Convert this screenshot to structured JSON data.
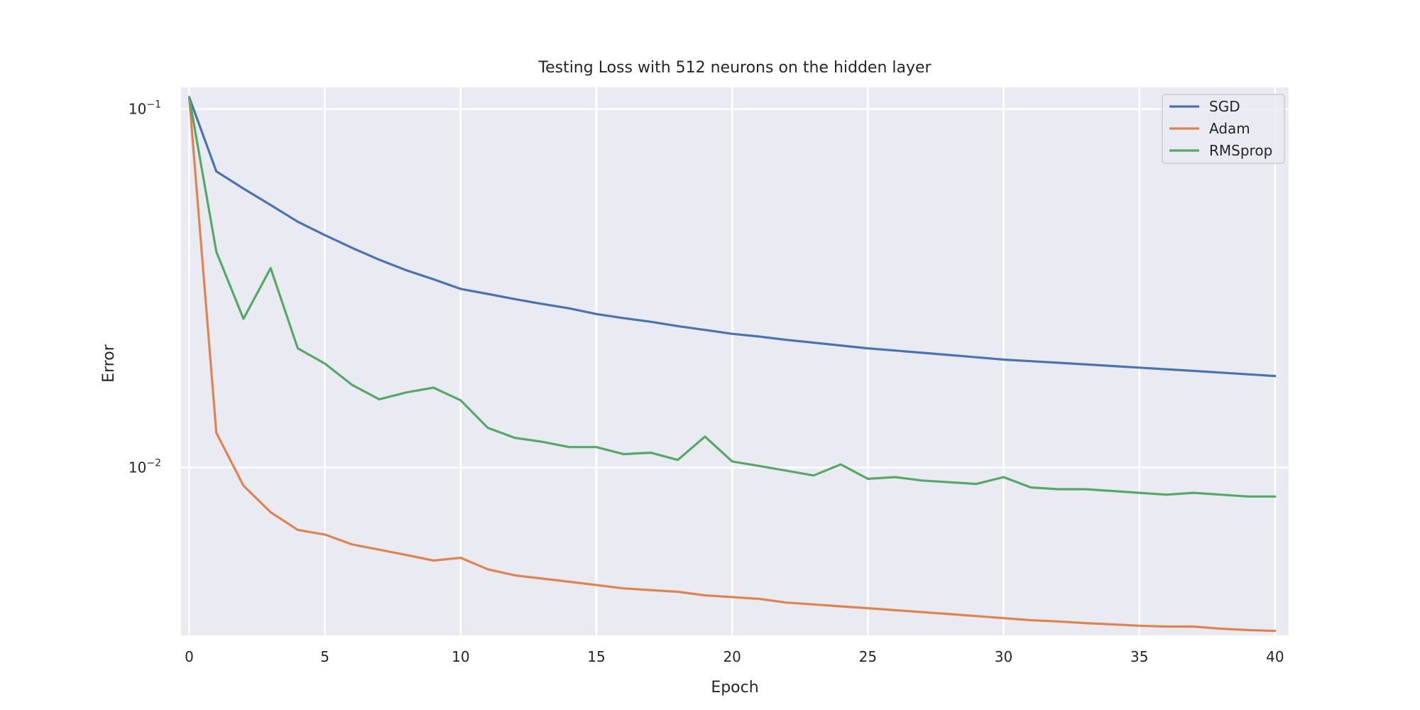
{
  "chart_data": {
    "type": "line",
    "title": "Testing Loss with 512 neurons on the hidden layer",
    "xlabel": "Epoch",
    "ylabel": "Error",
    "yscale": "log",
    "xlim": [
      -0.3,
      40.5
    ],
    "ylim": [
      0.0034,
      0.115
    ],
    "x_ticks": [
      0,
      5,
      10,
      15,
      20,
      25,
      30,
      35,
      40
    ],
    "y_ticks": [
      {
        "value": 0.1,
        "base": "10",
        "exp": "−1"
      },
      {
        "value": 0.01,
        "base": "10",
        "exp": "−2"
      }
    ],
    "grid": true,
    "legend_position": "top-right",
    "x": [
      0,
      1,
      2,
      3,
      4,
      5,
      6,
      7,
      8,
      9,
      10,
      11,
      12,
      13,
      14,
      15,
      16,
      17,
      18,
      19,
      20,
      21,
      22,
      23,
      24,
      25,
      26,
      27,
      28,
      29,
      30,
      31,
      32,
      33,
      34,
      35,
      36,
      37,
      38,
      39,
      40
    ],
    "series": [
      {
        "name": "SGD",
        "color": "#4c72b0",
        "values": [
          0.108,
          0.067,
          0.06,
          0.054,
          0.0485,
          0.0445,
          0.041,
          0.038,
          0.0355,
          0.0335,
          0.0315,
          0.0305,
          0.0295,
          0.0286,
          0.0278,
          0.0268,
          0.0261,
          0.0255,
          0.0248,
          0.0242,
          0.0236,
          0.0232,
          0.0227,
          0.0223,
          0.0219,
          0.0215,
          0.0212,
          0.0209,
          0.0206,
          0.0203,
          0.02,
          0.0198,
          0.0196,
          0.0194,
          0.0192,
          0.019,
          0.0188,
          0.0186,
          0.0184,
          0.0182,
          0.018
        ]
      },
      {
        "name": "Adam",
        "color": "#dd8452",
        "values": [
          0.108,
          0.0125,
          0.0089,
          0.0075,
          0.0067,
          0.0065,
          0.0061,
          0.0059,
          0.0057,
          0.0055,
          0.0056,
          0.0052,
          0.005,
          0.0049,
          0.0048,
          0.0047,
          0.0046,
          0.00455,
          0.0045,
          0.0044,
          0.00435,
          0.0043,
          0.0042,
          0.00415,
          0.0041,
          0.00405,
          0.004,
          0.00395,
          0.0039,
          0.00385,
          0.0038,
          0.00375,
          0.00372,
          0.00368,
          0.00365,
          0.00362,
          0.0036,
          0.0036,
          0.00355,
          0.00352,
          0.0035
        ]
      },
      {
        "name": "RMSprop",
        "color": "#55a868",
        "values": [
          0.108,
          0.04,
          0.026,
          0.036,
          0.0215,
          0.0195,
          0.017,
          0.0155,
          0.0162,
          0.0167,
          0.0154,
          0.0129,
          0.0121,
          0.0118,
          0.0114,
          0.0114,
          0.0109,
          0.011,
          0.0105,
          0.0122,
          0.0104,
          0.0101,
          0.0098,
          0.0095,
          0.0102,
          0.0093,
          0.0094,
          0.0092,
          0.0091,
          0.009,
          0.0094,
          0.0088,
          0.0087,
          0.0087,
          0.0086,
          0.0085,
          0.0084,
          0.0085,
          0.0084,
          0.0083,
          0.0083
        ]
      }
    ]
  }
}
